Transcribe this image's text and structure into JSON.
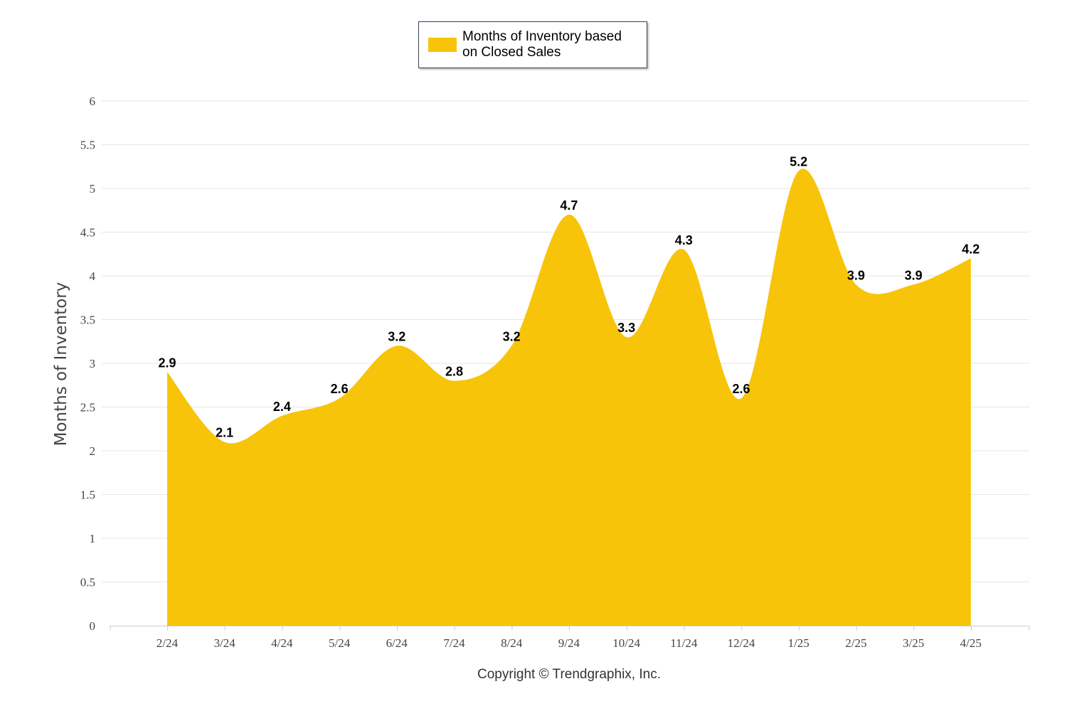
{
  "chart_data": {
    "type": "area",
    "categories": [
      "2/24",
      "3/24",
      "4/24",
      "5/24",
      "6/24",
      "7/24",
      "8/24",
      "9/24",
      "10/24",
      "11/24",
      "12/24",
      "1/25",
      "2/25",
      "3/25",
      "4/25"
    ],
    "series": [
      {
        "name": "Months of Inventory based on Closed Sales",
        "values": [
          2.9,
          2.1,
          2.4,
          2.6,
          3.2,
          2.8,
          3.2,
          4.7,
          3.3,
          4.3,
          2.6,
          5.2,
          3.9,
          3.9,
          4.2
        ],
        "color": "#f7c40a"
      }
    ],
    "legend": {
      "label": "Months of Inventory based on Closed Sales",
      "position": "top-center"
    },
    "ylabel": "Months of Inventory",
    "xlabel": "",
    "ylim": [
      0,
      6
    ],
    "yticks": [
      "0",
      "0.5",
      "1",
      "1.5",
      "2",
      "2.5",
      "3",
      "3.5",
      "4",
      "4.5",
      "5",
      "5.5",
      "6"
    ],
    "grid": true,
    "credit": "Copyright © Trendgraphix, Inc.",
    "colors": {
      "area": "#f7c40a",
      "grid": "#e6e6e6",
      "axis": "#cccccc"
    }
  }
}
